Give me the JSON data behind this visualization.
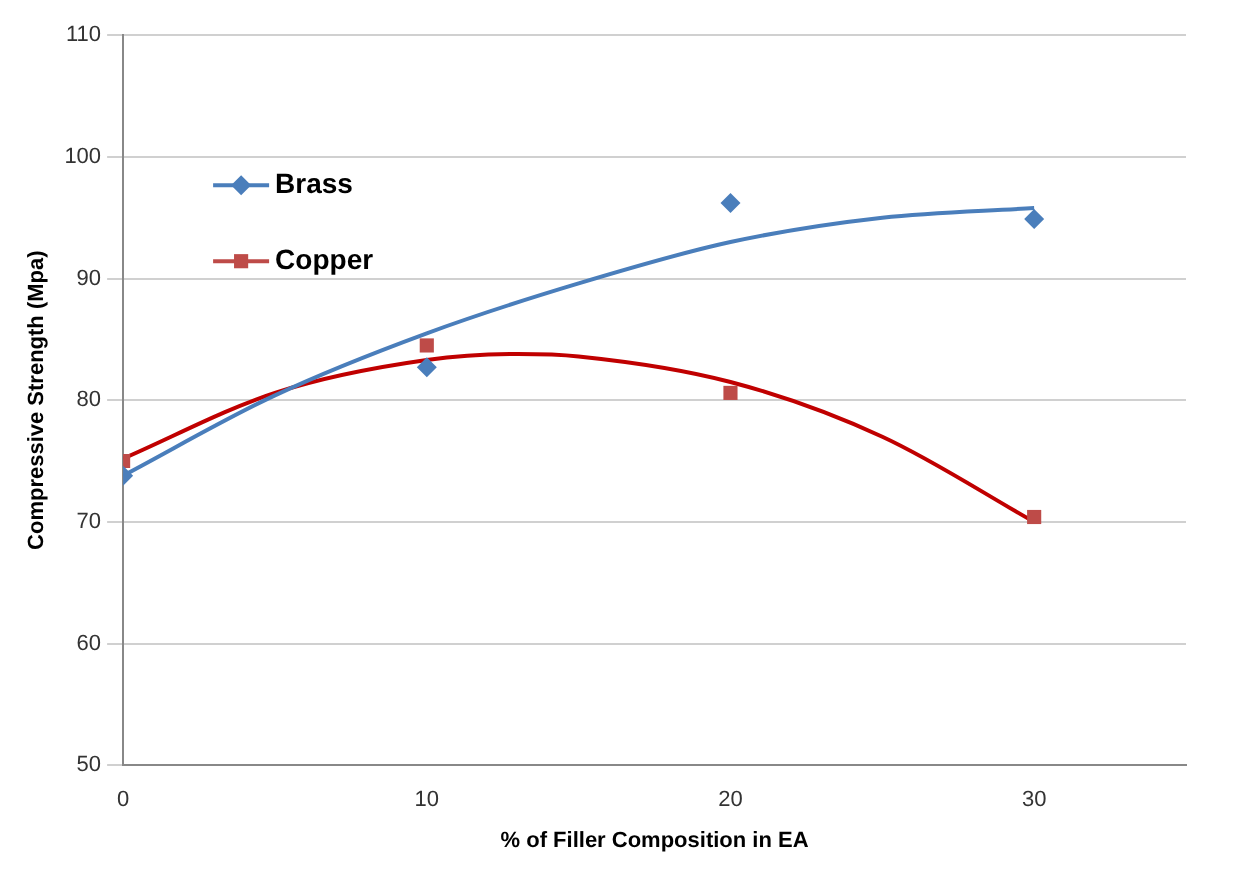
{
  "chart_data": {
    "type": "scatter",
    "xlabel": "% of Filler Composition in EA",
    "ylabel": "Compressive Strength (Mpa)",
    "xlim": [
      0,
      35
    ],
    "xticks": [
      0,
      10,
      20,
      30
    ],
    "ylim": [
      50,
      110
    ],
    "yticks": [
      50,
      60,
      70,
      80,
      90,
      100,
      110
    ],
    "grid": "y",
    "legend": "top left",
    "series": [
      {
        "name": "Brass",
        "marker": "diamond",
        "color": "#4a7ebb",
        "x": [
          0,
          10,
          20,
          30
        ],
        "values": [
          73.8,
          82.7,
          96.2,
          94.9
        ]
      },
      {
        "name": "Copper",
        "marker": "square",
        "color": "#be4b48",
        "x": [
          0,
          10,
          20,
          30
        ],
        "values": [
          75,
          84.5,
          80.6,
          70.4
        ]
      },
      {
        "type": "line",
        "marker": "none",
        "color": "#4a7ebb",
        "x": [
          0,
          5,
          10,
          15,
          20,
          25,
          30
        ],
        "values": [
          73.8,
          80.4,
          85.5,
          89.6,
          93,
          95,
          95.8
        ]
      },
      {
        "type": "line",
        "marker": "none",
        "color": "#c00000",
        "x": [
          0,
          5,
          10,
          13,
          15,
          20,
          25,
          30
        ],
        "values": [
          75.2,
          80.6,
          83.3,
          83.8,
          83.6,
          81.5,
          77,
          70
        ]
      }
    ]
  }
}
